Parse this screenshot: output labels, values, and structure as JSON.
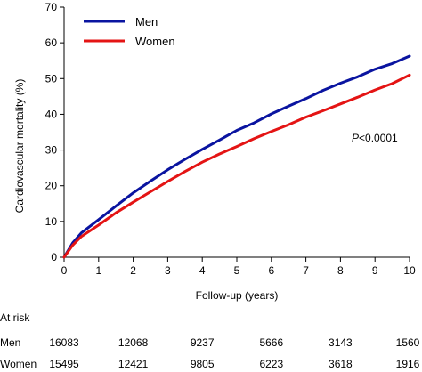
{
  "chart_data": {
    "type": "line",
    "title": "",
    "xlabel": "Follow-up (years)",
    "ylabel": "Cardiovascular mortality (%)",
    "xlim": [
      0,
      10
    ],
    "ylim": [
      0,
      70
    ],
    "xticks": [
      0,
      1,
      2,
      3,
      4,
      5,
      6,
      7,
      8,
      9,
      10
    ],
    "yticks": [
      0,
      10,
      20,
      30,
      40,
      50,
      60,
      70
    ],
    "grid": false,
    "legend_position": "top-left",
    "annotation": {
      "italic": "P",
      "rest": "<0.0001"
    },
    "series": [
      {
        "name": "Men",
        "color": "#0a14a0",
        "x": [
          0,
          0.25,
          0.5,
          1,
          1.5,
          2,
          2.5,
          3,
          3.5,
          4,
          4.5,
          5,
          5.5,
          6,
          6.5,
          7,
          7.5,
          8,
          8.5,
          9,
          9.5,
          10
        ],
        "y": [
          0,
          4.0,
          6.8,
          10.5,
          14.3,
          18.0,
          21.3,
          24.5,
          27.4,
          30.2,
          32.8,
          35.5,
          37.6,
          40.1,
          42.3,
          44.4,
          46.7,
          48.7,
          50.5,
          52.6,
          54.2,
          56.3
        ]
      },
      {
        "name": "Women",
        "color": "#e41414",
        "x": [
          0,
          0.25,
          0.5,
          1,
          1.5,
          2,
          2.5,
          3,
          3.5,
          4,
          4.5,
          5,
          5.5,
          6,
          6.5,
          7,
          7.5,
          8,
          8.5,
          9,
          9.5,
          10
        ],
        "y": [
          0,
          3.4,
          5.8,
          9.0,
          12.4,
          15.4,
          18.3,
          21.2,
          24.0,
          26.6,
          28.9,
          31.0,
          33.2,
          35.2,
          37.1,
          39.2,
          41.0,
          42.9,
          44.8,
          46.8,
          48.6,
          51.0
        ]
      }
    ]
  },
  "at_risk": {
    "title": "At risk",
    "rows": [
      {
        "label": "Men",
        "values": [
          "16083",
          "12068",
          "9237",
          "5666",
          "3143",
          "1560"
        ]
      },
      {
        "label": "Women",
        "values": [
          "15495",
          "12421",
          "9805",
          "6223",
          "3618",
          "1916"
        ]
      }
    ]
  }
}
